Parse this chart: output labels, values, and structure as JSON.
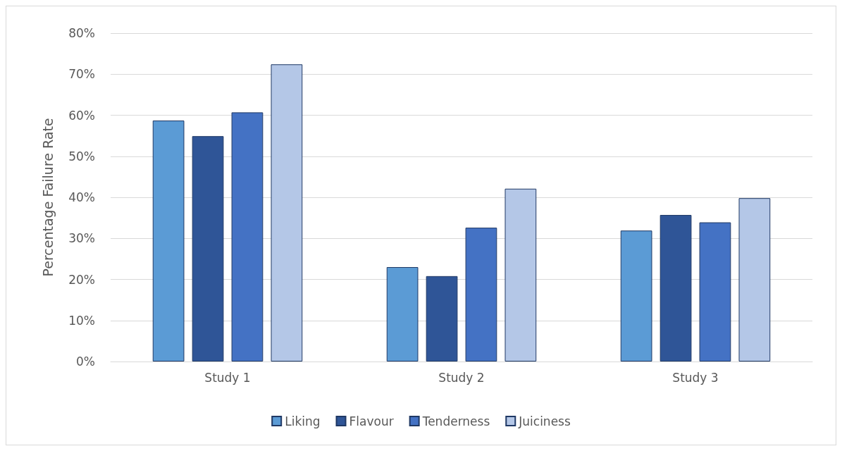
{
  "chart_data": {
    "type": "bar",
    "ylabel": "Percentage Failure Rate",
    "categories": [
      "Study 1",
      "Study 2",
      "Study 3"
    ],
    "series": [
      {
        "name": "Liking",
        "color": "#5b9bd5",
        "values": [
          58.7,
          23,
          31.9
        ]
      },
      {
        "name": "Flavour",
        "color": "#2f5597",
        "values": [
          54.9,
          20.8,
          35.7
        ]
      },
      {
        "name": "Tenderness",
        "color": "#4472c4",
        "values": [
          60.7,
          32.6,
          33.9
        ]
      },
      {
        "name": "Juiciness",
        "color": "#b4c7e7",
        "values": [
          72.4,
          42.1,
          39.8
        ]
      }
    ],
    "ylim": [
      0,
      80
    ],
    "yticks": [
      {
        "value": 0,
        "label": "0%"
      },
      {
        "value": 10,
        "label": "10%"
      },
      {
        "value": 20,
        "label": "20%"
      },
      {
        "value": 30,
        "label": "30%"
      },
      {
        "value": 40,
        "label": "40%"
      },
      {
        "value": 50,
        "label": "50%"
      },
      {
        "value": 60,
        "label": "60%"
      },
      {
        "value": 70,
        "label": "70%"
      },
      {
        "value": 80,
        "label": "80%"
      }
    ],
    "grid": "y",
    "legend": "bottom"
  }
}
